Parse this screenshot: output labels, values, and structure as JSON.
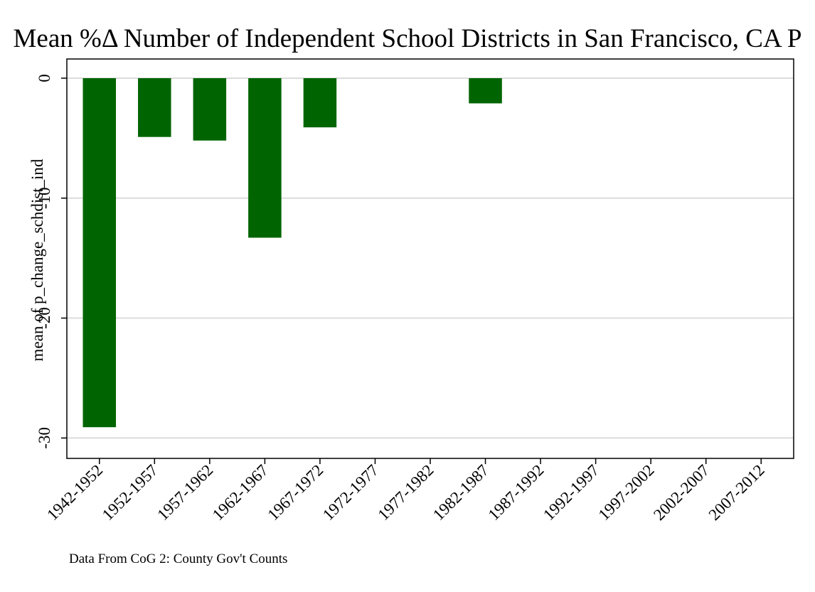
{
  "chart_data": {
    "type": "bar",
    "title": "Mean %Δ Number of Independent School Districts in San Francisco, CA P",
    "ylabel": "mean of p_change_schdist_ind",
    "xlabel": "",
    "categories": [
      "1942-1952",
      "1952-1957",
      "1957-1962",
      "1962-1967",
      "1967-1972",
      "1972-1977",
      "1977-1982",
      "1982-1987",
      "1987-1992",
      "1992-1997",
      "1997-2002",
      "2002-2007",
      "2007-2012"
    ],
    "values": [
      -29.1,
      -4.9,
      -5.2,
      -13.3,
      -4.1,
      null,
      null,
      -2.1,
      null,
      null,
      null,
      null,
      null
    ],
    "ylim": [
      -31.7,
      1.6
    ],
    "yticks": [
      0,
      -10,
      -20,
      -30
    ],
    "ytick_labels": [
      "0",
      "-10",
      "-20",
      "-30"
    ],
    "bar_color": "#006400",
    "grid": true,
    "grid_color": "#dcdcdc",
    "note": "Data From CoG 2: County Gov't Counts"
  }
}
